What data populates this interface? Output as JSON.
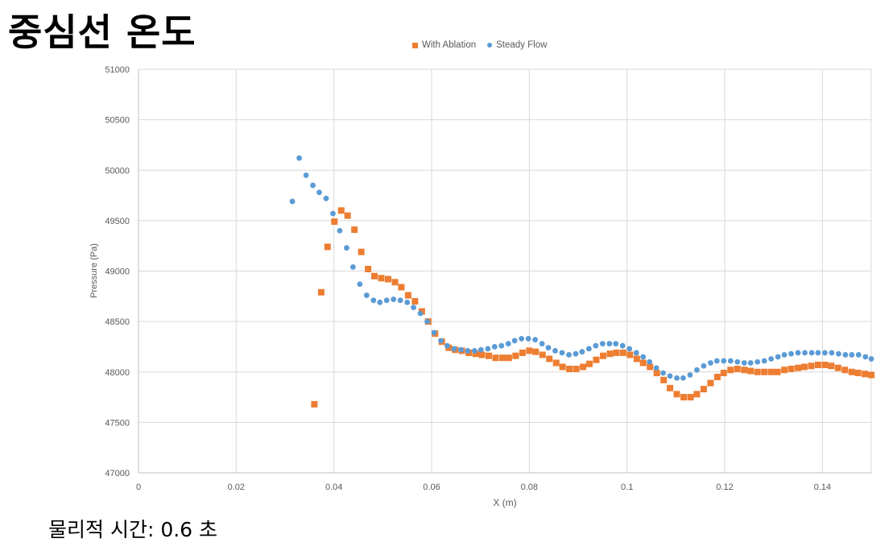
{
  "title": "중심선 온도",
  "caption": "물리적 시간: 0.6 초",
  "chart_data": {
    "type": "scatter",
    "xlabel": "X (m)",
    "ylabel": "Pressure (Pa)",
    "xlim": [
      0,
      0.15
    ],
    "ylim": [
      47000,
      51000
    ],
    "xticks": [
      "0",
      "0.02",
      "0.04",
      "0.06",
      "0.08",
      "0.1",
      "0.12",
      "0.14"
    ],
    "xtick_values": [
      0,
      0.02,
      0.04,
      0.06,
      0.08,
      0.1,
      0.12,
      0.14
    ],
    "yticks": [
      "47000",
      "47500",
      "48000",
      "48500",
      "49000",
      "49500",
      "50000",
      "50500",
      "51000"
    ],
    "ytick_values": [
      47000,
      47500,
      48000,
      48500,
      49000,
      49500,
      50000,
      50500,
      51000
    ],
    "grid": true,
    "legend_position": "top",
    "series": [
      {
        "name": "With Ablation",
        "marker": "square",
        "color": "#ED7D31",
        "x": [
          0.036,
          0.0374,
          0.0387,
          0.0401,
          0.0415,
          0.0428,
          0.0442,
          0.0456,
          0.047,
          0.0483,
          0.0497,
          0.0511,
          0.0525,
          0.0538,
          0.0552,
          0.0566,
          0.058,
          0.0593,
          0.0607,
          0.0621,
          0.0635,
          0.0648,
          0.0662,
          0.0676,
          0.069,
          0.0703,
          0.0717,
          0.0731,
          0.0745,
          0.0758,
          0.0772,
          0.0786,
          0.08,
          0.0813,
          0.0827,
          0.0841,
          0.0855,
          0.0868,
          0.0882,
          0.0896,
          0.091,
          0.0923,
          0.0937,
          0.0951,
          0.0965,
          0.0978,
          0.0992,
          0.1006,
          0.102,
          0.1033,
          0.1047,
          0.1061,
          0.1075,
          0.1088,
          0.1102,
          0.1116,
          0.113,
          0.1143,
          0.1157,
          0.1171,
          0.1185,
          0.1198,
          0.1212,
          0.1226,
          0.124,
          0.1253,
          0.1267,
          0.1281,
          0.1295,
          0.1308,
          0.1322,
          0.1336,
          0.135,
          0.1363,
          0.1377,
          0.1391,
          0.1405,
          0.1418,
          0.1432,
          0.1446,
          0.146,
          0.1473,
          0.1487,
          0.15
        ],
        "y": [
          47680,
          48790,
          49240,
          49490,
          49600,
          49550,
          49410,
          49190,
          49020,
          48950,
          48930,
          48920,
          48890,
          48840,
          48760,
          48700,
          48600,
          48500,
          48380,
          48300,
          48240,
          48220,
          48210,
          48190,
          48180,
          48170,
          48160,
          48140,
          48140,
          48140,
          48160,
          48190,
          48210,
          48200,
          48170,
          48130,
          48090,
          48050,
          48030,
          48030,
          48050,
          48080,
          48120,
          48160,
          48180,
          48190,
          48190,
          48170,
          48130,
          48090,
          48050,
          47990,
          47920,
          47840,
          47780,
          47750,
          47750,
          47780,
          47830,
          47890,
          47950,
          47990,
          48020,
          48030,
          48020,
          48010,
          48000,
          48000,
          48000,
          48000,
          48020,
          48030,
          48040,
          48050,
          48060,
          48070,
          48070,
          48060,
          48040,
          48020,
          48000,
          47990,
          47980,
          47970
        ]
      },
      {
        "name": "Steady Flow",
        "marker": "circle",
        "color": "#5B9BD5",
        "x": [
          0.0315,
          0.0329,
          0.0343,
          0.0357,
          0.037,
          0.0384,
          0.0398,
          0.0412,
          0.0426,
          0.0439,
          0.0453,
          0.0467,
          0.0481,
          0.0494,
          0.0508,
          0.0522,
          0.0536,
          0.055,
          0.0563,
          0.0577,
          0.0591,
          0.0605,
          0.0619,
          0.0632,
          0.0646,
          0.066,
          0.0674,
          0.0688,
          0.0701,
          0.0715,
          0.0729,
          0.0743,
          0.0757,
          0.077,
          0.0784,
          0.0798,
          0.0812,
          0.0826,
          0.0839,
          0.0853,
          0.0867,
          0.0881,
          0.0895,
          0.0908,
          0.0922,
          0.0936,
          0.095,
          0.0964,
          0.0977,
          0.0991,
          0.1005,
          0.1019,
          0.1033,
          0.1046,
          0.106,
          0.1074,
          0.1088,
          0.1102,
          0.1115,
          0.1129,
          0.1143,
          0.1157,
          0.1171,
          0.1184,
          0.1198,
          0.1212,
          0.1226,
          0.124,
          0.1253,
          0.1267,
          0.1281,
          0.1295,
          0.1309,
          0.1322,
          0.1336,
          0.135,
          0.1364,
          0.1378,
          0.1391,
          0.1405,
          0.1419,
          0.1433,
          0.1447,
          0.146,
          0.1474,
          0.1488,
          0.15
        ],
        "y": [
          49690,
          50120,
          49950,
          49850,
          49780,
          49720,
          49570,
          49400,
          49230,
          49040,
          48870,
          48760,
          48710,
          48690,
          48710,
          48720,
          48710,
          48690,
          48640,
          48580,
          48500,
          48390,
          48310,
          48260,
          48230,
          48220,
          48210,
          48210,
          48220,
          48230,
          48250,
          48260,
          48280,
          48310,
          48330,
          48330,
          48320,
          48280,
          48240,
          48210,
          48190,
          48170,
          48180,
          48200,
          48230,
          48260,
          48280,
          48280,
          48280,
          48260,
          48230,
          48190,
          48150,
          48100,
          48040,
          47990,
          47960,
          47940,
          47940,
          47970,
          48020,
          48060,
          48090,
          48110,
          48110,
          48110,
          48100,
          48090,
          48090,
          48100,
          48110,
          48130,
          48150,
          48170,
          48180,
          48190,
          48190,
          48190,
          48190,
          48190,
          48190,
          48180,
          48170,
          48170,
          48170,
          48150,
          48130
        ]
      }
    ]
  }
}
